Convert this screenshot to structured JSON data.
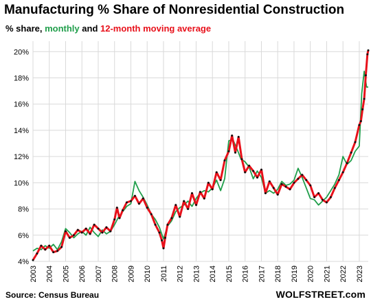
{
  "chart_data": {
    "type": "line",
    "title": "Manufacturing  % Share of Nonresidential  Construction",
    "subtitle_parts": [
      "% share, ",
      "monthly",
      " and ",
      "12-month moving average"
    ],
    "source": "Source: Census Bureau",
    "brand": "WOLFSTREET.com",
    "ylim": [
      4,
      20.8
    ],
    "y_ticks": [
      4,
      6,
      8,
      10,
      12,
      14,
      16,
      18,
      20
    ],
    "y_tick_labels": [
      "4%",
      "6%",
      "8%",
      "10%",
      "12%",
      "14%",
      "16%",
      "18%",
      "20%"
    ],
    "xlim": [
      2003.0,
      2023.55
    ],
    "x_tick_labels": [
      "2003",
      "2004",
      "2005",
      "2006",
      "2007",
      "2008",
      "2009",
      "2010",
      "2011",
      "2012",
      "2013",
      "2014",
      "2015",
      "2016",
      "2017",
      "2018",
      "2019",
      "2020",
      "2021",
      "2022",
      "2023"
    ],
    "grid": true,
    "colors": {
      "monthly": "#1f9e4a",
      "ma": "#e8101a",
      "marker": "#111111",
      "grid": "#d9d9d9"
    },
    "series": [
      {
        "name": "monthly",
        "x": [
          2003.0,
          2003.25,
          2003.5,
          2003.75,
          2004.0,
          2004.25,
          2004.5,
          2004.75,
          2005.0,
          2005.25,
          2005.5,
          2005.75,
          2006.0,
          2006.25,
          2006.5,
          2006.75,
          2007.0,
          2007.25,
          2007.5,
          2007.75,
          2008.0,
          2008.25,
          2008.5,
          2008.75,
          2009.0,
          2009.25,
          2009.5,
          2009.75,
          2010.0,
          2010.25,
          2010.5,
          2010.75,
          2011.0,
          2011.25,
          2011.5,
          2011.75,
          2012.0,
          2012.25,
          2012.5,
          2012.75,
          2013.0,
          2013.25,
          2013.5,
          2013.75,
          2014.0,
          2014.25,
          2014.5,
          2014.75,
          2015.0,
          2015.25,
          2015.5,
          2015.75,
          2016.0,
          2016.25,
          2016.5,
          2016.75,
          2017.0,
          2017.25,
          2017.5,
          2017.75,
          2018.0,
          2018.25,
          2018.5,
          2018.75,
          2019.0,
          2019.25,
          2019.5,
          2019.75,
          2020.0,
          2020.25,
          2020.5,
          2020.75,
          2021.0,
          2021.25,
          2021.5,
          2021.75,
          2022.0,
          2022.25,
          2022.5,
          2022.75,
          2023.0,
          2023.15,
          2023.3,
          2023.45,
          2023.55
        ],
        "y": [
          4.8,
          5.0,
          4.9,
          5.2,
          5.0,
          5.3,
          4.9,
          5.5,
          6.5,
          6.2,
          5.8,
          6.1,
          6.3,
          6.0,
          6.6,
          6.2,
          5.9,
          6.4,
          6.1,
          6.3,
          6.8,
          7.4,
          7.8,
          8.2,
          8.4,
          10.1,
          9.4,
          8.9,
          8.3,
          7.6,
          7.2,
          6.6,
          5.7,
          6.7,
          7.1,
          7.8,
          8.1,
          8.3,
          8.6,
          8.2,
          8.8,
          9.2,
          9.4,
          9.3,
          9.6,
          10.2,
          9.4,
          10.3,
          13.2,
          13.3,
          12.6,
          11.8,
          11.6,
          11.2,
          10.3,
          10.9,
          10.4,
          9.2,
          9.4,
          9.2,
          9.5,
          10.1,
          9.8,
          9.9,
          10.2,
          11.1,
          10.4,
          9.6,
          8.8,
          8.7,
          8.3,
          8.6,
          8.9,
          9.4,
          9.9,
          10.6,
          12.0,
          11.4,
          11.7,
          12.4,
          12.8,
          16.8,
          18.5,
          17.3,
          17.3
        ]
      },
      {
        "name": "12-month moving average",
        "x": [
          2003.0,
          2003.25,
          2003.5,
          2003.75,
          2004.0,
          2004.25,
          2004.5,
          2004.75,
          2005.0,
          2005.25,
          2005.5,
          2005.75,
          2006.0,
          2006.25,
          2006.5,
          2006.75,
          2007.0,
          2007.25,
          2007.5,
          2007.75,
          2008.0,
          2008.15,
          2008.3,
          2008.5,
          2008.75,
          2009.0,
          2009.25,
          2009.5,
          2009.75,
          2010.0,
          2010.25,
          2010.5,
          2010.75,
          2010.9,
          2011.0,
          2011.1,
          2011.25,
          2011.5,
          2011.75,
          2012.0,
          2012.25,
          2012.5,
          2012.75,
          2013.0,
          2013.25,
          2013.5,
          2013.75,
          2014.0,
          2014.25,
          2014.5,
          2014.75,
          2015.0,
          2015.2,
          2015.4,
          2015.6,
          2015.8,
          2016.0,
          2016.25,
          2016.5,
          2016.75,
          2017.0,
          2017.25,
          2017.5,
          2017.75,
          2018.0,
          2018.25,
          2018.5,
          2018.75,
          2019.0,
          2019.25,
          2019.5,
          2019.75,
          2020.0,
          2020.25,
          2020.5,
          2020.75,
          2021.0,
          2021.25,
          2021.5,
          2021.75,
          2022.0,
          2022.25,
          2022.5,
          2022.75,
          2023.0,
          2023.1,
          2023.2,
          2023.3,
          2023.4,
          2023.5,
          2023.55
        ],
        "y": [
          4.1,
          4.6,
          5.2,
          4.9,
          5.2,
          4.7,
          4.8,
          5.1,
          6.3,
          5.8,
          6.0,
          6.4,
          6.2,
          6.5,
          6.1,
          6.8,
          6.5,
          6.2,
          6.6,
          6.3,
          7.2,
          8.1,
          7.3,
          7.9,
          8.5,
          8.6,
          9.0,
          8.4,
          8.8,
          8.1,
          7.6,
          6.8,
          6.2,
          5.6,
          5.0,
          5.8,
          6.8,
          7.3,
          8.3,
          7.4,
          8.6,
          8.0,
          9.2,
          8.3,
          9.3,
          8.8,
          10.0,
          9.5,
          10.8,
          10.2,
          11.7,
          12.4,
          13.6,
          12.3,
          13.5,
          11.8,
          10.8,
          11.3,
          10.9,
          10.4,
          11.0,
          9.2,
          10.1,
          9.6,
          9.1,
          9.9,
          9.7,
          9.5,
          10.0,
          10.3,
          10.6,
          10.2,
          9.8,
          8.9,
          9.2,
          8.7,
          8.5,
          8.9,
          9.6,
          10.2,
          10.8,
          11.5,
          12.3,
          13.1,
          14.4,
          14.7,
          15.6,
          16.4,
          18.2,
          19.8,
          20.1
        ]
      }
    ]
  }
}
